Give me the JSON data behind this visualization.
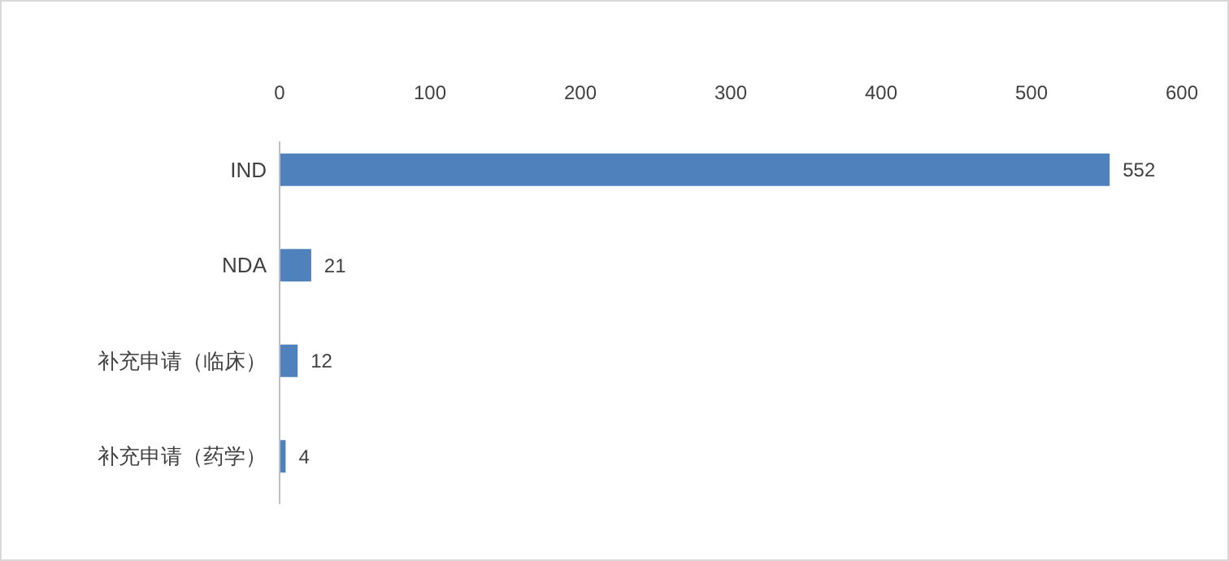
{
  "chart_data": {
    "type": "bar",
    "orientation": "horizontal",
    "categories": [
      "IND",
      "NDA",
      "补充申请（临床）",
      "补充申请（药学）"
    ],
    "values": [
      552,
      21,
      12,
      4
    ],
    "color": "#4f81bd",
    "xlim": [
      0,
      600
    ],
    "xticks": [
      0,
      100,
      200,
      300,
      400,
      500,
      600
    ],
    "data_labels": true,
    "grid": false
  }
}
